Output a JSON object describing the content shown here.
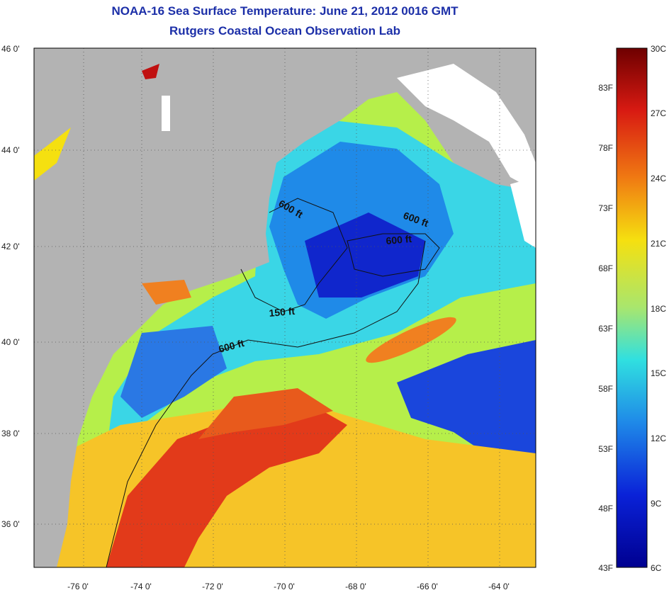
{
  "title": {
    "line1": "NOAA-16 Sea Surface Temperature:  June 21, 2012 0016 GMT",
    "line2": "Rutgers Coastal Ocean Observation Lab"
  },
  "map": {
    "lat_ticks": [
      "46 0'",
      "44 0'",
      "42 0'",
      "40 0'",
      "38 0'",
      "36 0'"
    ],
    "lon_ticks": [
      "-76 0'",
      "-74 0'",
      "-72 0'",
      "-70 0'",
      "-68 0'",
      "-66 0'",
      "-64 0'"
    ],
    "lat_range": [
      35,
      46
    ],
    "lon_range": [
      -77,
      -63
    ],
    "contour_labels": [
      "600 ft",
      "600 ft",
      "600 ft",
      "150 ft",
      "600 ft"
    ],
    "land_color": "#b3b3b3",
    "cloud_color": "#ffffff"
  },
  "colorbar": {
    "fahrenheit_labels": [
      "83F",
      "78F",
      "73F",
      "68F",
      "63F",
      "58F",
      "53F",
      "48F",
      "43F"
    ],
    "celsius_labels": [
      "30C",
      "27C",
      "24C",
      "21C",
      "18C",
      "15C",
      "12C",
      "9C",
      "6C"
    ],
    "colors": [
      "#7a0000",
      "#d41a12",
      "#f07a12",
      "#f5e410",
      "#9ee66a",
      "#2fe0e0",
      "#1f86e8",
      "#0a1ed8",
      "#00008f"
    ]
  }
}
